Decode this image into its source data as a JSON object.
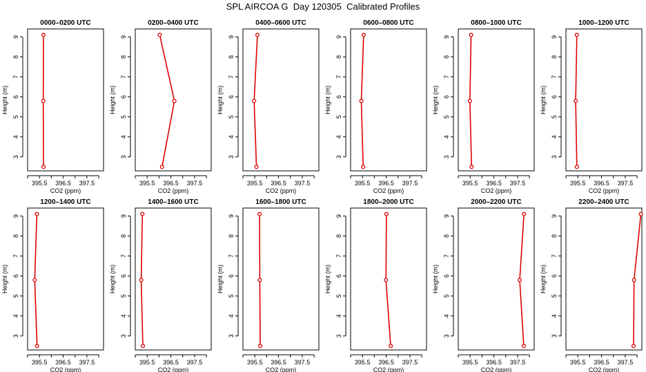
{
  "title": "SPL AIRCOA G  Day 120305  Calibrated Profiles",
  "colors": {
    "profile": "#dd0000",
    "axis": "#000000"
  },
  "chart_data": [
    {
      "type": "line",
      "title": "0000–0200 UTC",
      "xlabel": "CO2 (ppm)",
      "ylabel": "Height (m)",
      "xticks": [
        "395.5",
        "396.5",
        "397.5"
      ],
      "yticks": [
        "3",
        "4",
        "5",
        "6",
        "7",
        "8",
        "9"
      ],
      "xlim": [
        395.0,
        398.2
      ],
      "ylim": [
        2.3,
        9.4
      ],
      "series": [
        {
          "x": [
            395.67,
            395.66,
            395.67
          ],
          "y": [
            2.5,
            5.8,
            9.1
          ]
        }
      ]
    },
    {
      "type": "line",
      "title": "0200–0400 UTC",
      "xlabel": "CO2 (ppm)",
      "ylabel": "Height (m)",
      "xticks": [
        "395.5",
        "396.5",
        "397.5"
      ],
      "yticks": [
        "3",
        "4",
        "5",
        "6",
        "7",
        "8",
        "9"
      ],
      "xlim": [
        395.0,
        398.2
      ],
      "ylim": [
        2.3,
        9.4
      ],
      "series": [
        {
          "x": [
            396.13,
            396.65,
            396.03
          ],
          "y": [
            2.5,
            5.8,
            9.1
          ]
        }
      ]
    },
    {
      "type": "line",
      "title": "0400–0600 UTC",
      "xlabel": "CO2 (ppm)",
      "ylabel": "Height (m)",
      "xticks": [
        "395.5",
        "396.5",
        "397.5"
      ],
      "yticks": [
        "3",
        "4",
        "5",
        "6",
        "7",
        "8",
        "9"
      ],
      "xlim": [
        395.0,
        398.2
      ],
      "ylim": [
        2.3,
        9.4
      ],
      "series": [
        {
          "x": [
            395.57,
            395.47,
            395.61
          ],
          "y": [
            2.5,
            5.8,
            9.1
          ]
        }
      ]
    },
    {
      "type": "line",
      "title": "0600–0800 UTC",
      "xlabel": "CO2 (ppm)",
      "ylabel": "Height (m)",
      "xticks": [
        "395.5",
        "396.5",
        "397.5"
      ],
      "yticks": [
        "3",
        "4",
        "5",
        "6",
        "7",
        "8",
        "9"
      ],
      "xlim": [
        395.0,
        398.2
      ],
      "ylim": [
        2.3,
        9.4
      ],
      "series": [
        {
          "x": [
            395.53,
            395.45,
            395.55
          ],
          "y": [
            2.5,
            5.8,
            9.1
          ]
        }
      ]
    },
    {
      "type": "line",
      "title": "0800–1000 UTC",
      "xlabel": "CO2 (ppm)",
      "ylabel": "Height (m)",
      "xticks": [
        "395.5",
        "396.5",
        "397.5"
      ],
      "yticks": [
        "3",
        "4",
        "5",
        "6",
        "7",
        "8",
        "9"
      ],
      "xlim": [
        395.0,
        398.2
      ],
      "ylim": [
        2.3,
        9.4
      ],
      "series": [
        {
          "x": [
            395.56,
            395.49,
            395.54
          ],
          "y": [
            2.5,
            5.8,
            9.1
          ]
        }
      ]
    },
    {
      "type": "line",
      "title": "1000–1200 UTC",
      "xlabel": "CO2 (ppm)",
      "ylabel": "Height (m)",
      "xticks": [
        "395.5",
        "396.5",
        "397.5"
      ],
      "yticks": [
        "3",
        "4",
        "5",
        "6",
        "7",
        "8",
        "9"
      ],
      "xlim": [
        395.0,
        398.2
      ],
      "ylim": [
        2.3,
        9.4
      ],
      "series": [
        {
          "x": [
            395.46,
            395.41,
            395.46
          ],
          "y": [
            2.5,
            5.8,
            9.1
          ]
        }
      ]
    },
    {
      "type": "line",
      "title": "1200–1400 UTC",
      "xlabel": "CO2 (ppm)",
      "ylabel": "Height (m)",
      "xticks": [
        "395.5",
        "396.5",
        "397.5"
      ],
      "yticks": [
        "3",
        "4",
        "5",
        "6",
        "7",
        "8",
        "9"
      ],
      "xlim": [
        395.0,
        398.2
      ],
      "ylim": [
        2.3,
        9.4
      ],
      "series": [
        {
          "x": [
            395.4,
            395.3,
            395.39
          ],
          "y": [
            2.5,
            5.8,
            9.1
          ]
        }
      ]
    },
    {
      "type": "line",
      "title": "1400–1600 UTC",
      "xlabel": "CO2 (ppm)",
      "ylabel": "Height (m)",
      "xticks": [
        "395.5",
        "396.5",
        "397.5"
      ],
      "yticks": [
        "3",
        "4",
        "5",
        "6",
        "7",
        "8",
        "9"
      ],
      "xlim": [
        395.0,
        398.2
      ],
      "ylim": [
        2.3,
        9.4
      ],
      "series": [
        {
          "x": [
            395.32,
            395.25,
            395.3
          ],
          "y": [
            2.5,
            5.8,
            9.1
          ]
        }
      ]
    },
    {
      "type": "line",
      "title": "1600–1800 UTC",
      "xlabel": "CO2 (ppm)",
      "ylabel": "Height (m)",
      "xticks": [
        "395.5",
        "396.5",
        "397.5"
      ],
      "yticks": [
        "3",
        "4",
        "5",
        "6",
        "7",
        "8",
        "9"
      ],
      "xlim": [
        395.0,
        398.2
      ],
      "ylim": [
        2.3,
        9.4
      ],
      "series": [
        {
          "x": [
            395.73,
            395.71,
            395.7
          ],
          "y": [
            2.5,
            5.8,
            9.1
          ]
        }
      ]
    },
    {
      "type": "line",
      "title": "1800–2000 UTC",
      "xlabel": "CO2 (ppm)",
      "ylabel": "Height (m)",
      "xticks": [
        "395.5",
        "396.5",
        "397.5"
      ],
      "yticks": [
        "3",
        "4",
        "5",
        "6",
        "7",
        "8",
        "9"
      ],
      "xlim": [
        395.0,
        398.2
      ],
      "ylim": [
        2.3,
        9.4
      ],
      "series": [
        {
          "x": [
            396.69,
            396.49,
            396.51
          ],
          "y": [
            2.5,
            5.8,
            9.1
          ]
        }
      ]
    },
    {
      "type": "line",
      "title": "2000–2200 UTC",
      "xlabel": "CO2 (ppm)",
      "ylabel": "Height (m)",
      "xticks": [
        "395.5",
        "396.5",
        "397.5"
      ],
      "yticks": [
        "3",
        "4",
        "5",
        "6",
        "7",
        "8",
        "9"
      ],
      "xlim": [
        395.0,
        398.2
      ],
      "ylim": [
        2.3,
        9.4
      ],
      "series": [
        {
          "x": [
            397.76,
            397.59,
            397.77
          ],
          "y": [
            2.5,
            5.8,
            9.1
          ]
        }
      ]
    },
    {
      "type": "line",
      "title": "2200–2400 UTC",
      "xlabel": "CO2 (ppm)",
      "ylabel": "Height (m)",
      "xticks": [
        "395.5",
        "396.5",
        "397.5"
      ],
      "yticks": [
        "3",
        "4",
        "5",
        "6",
        "7",
        "8",
        "9"
      ],
      "xlim": [
        395.0,
        398.2
      ],
      "ylim": [
        2.3,
        9.4
      ],
      "series": [
        {
          "x": [
            397.85,
            397.87,
            398.16
          ],
          "y": [
            2.5,
            5.8,
            9.1
          ]
        }
      ]
    }
  ]
}
